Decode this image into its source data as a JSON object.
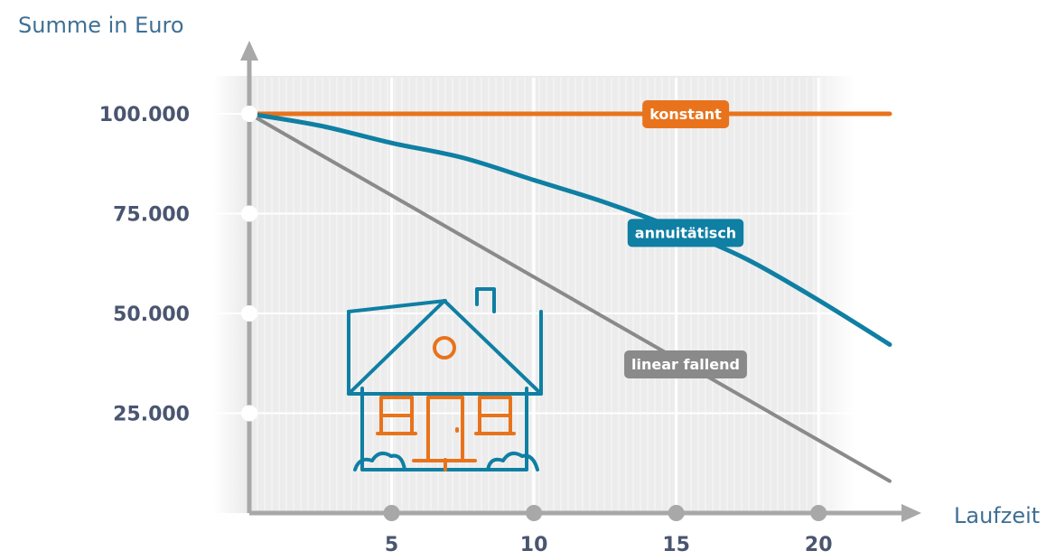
{
  "chart_data": {
    "type": "line",
    "title": "",
    "xlabel": "Laufzeit",
    "ylabel": "Summe in Euro",
    "x_ticks": [
      5,
      10,
      15,
      20
    ],
    "x_tick_labels": [
      "5",
      "10",
      "15",
      "20"
    ],
    "y_ticks": [
      25000,
      50000,
      75000,
      100000
    ],
    "y_tick_labels": [
      "25.000",
      "50.000",
      "75.000",
      "100.000"
    ],
    "xlim": [
      0,
      22.5
    ],
    "ylim": [
      0,
      100000
    ],
    "grid": true,
    "series": [
      {
        "name": "konstant",
        "color": "#e8731c",
        "points": [
          [
            0,
            100000
          ],
          [
            22.5,
            100000
          ]
        ]
      },
      {
        "name": "annuitätisch",
        "color": "#0f7fa3",
        "points": [
          [
            0,
            100000
          ],
          [
            2.5,
            97000
          ],
          [
            5,
            92700
          ],
          [
            7.5,
            89000
          ],
          [
            10,
            83400
          ],
          [
            12.5,
            77800
          ],
          [
            15,
            71200
          ],
          [
            17.5,
            63500
          ],
          [
            20,
            53300
          ],
          [
            22.5,
            42200
          ]
        ]
      },
      {
        "name": "linear fallend",
        "color": "#8a8a8a",
        "points": [
          [
            0,
            100000
          ],
          [
            22.5,
            8000
          ]
        ]
      }
    ],
    "illustration": "house-icon",
    "colors": {
      "axis": "#a8a8a8",
      "grid_bg": "#ececec",
      "minor_grid": "#f8f8f8",
      "major_grid": "#ffffff",
      "house_primary": "#0f7fa3",
      "house_accent": "#e8731c"
    }
  }
}
